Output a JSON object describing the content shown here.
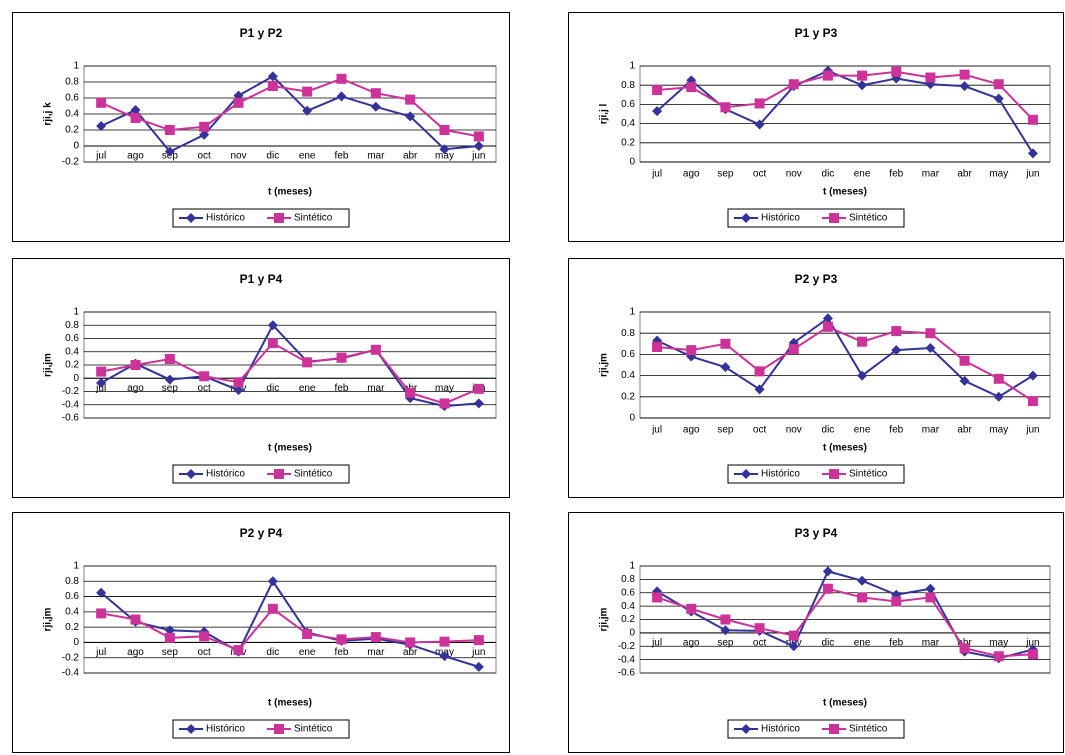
{
  "chart_data": [
    {
      "type": "line",
      "title": "P1 y P2",
      "x_label": "t (meses)",
      "y_label": "rji,j k",
      "categories": [
        "jul",
        "ago",
        "sep",
        "oct",
        "nov",
        "dic",
        "ene",
        "feb",
        "mar",
        "abr",
        "may",
        "jun"
      ],
      "ylim": [
        -0.2,
        1
      ],
      "yticks": [
        -0.2,
        0,
        0.2,
        0.4,
        0.6,
        0.8,
        1
      ],
      "grid": true,
      "legend": "bottom",
      "series": [
        {
          "name": "Histórico",
          "color": "#333399",
          "marker": "diamond",
          "values": [
            0.25,
            0.45,
            -0.07,
            0.14,
            0.63,
            0.87,
            0.44,
            0.62,
            0.49,
            0.37,
            -0.04,
            0.0
          ]
        },
        {
          "name": "Sintético",
          "color": "#cc3399",
          "marker": "square",
          "values": [
            0.54,
            0.35,
            0.2,
            0.24,
            0.54,
            0.75,
            0.68,
            0.84,
            0.66,
            0.58,
            0.2,
            0.12
          ]
        }
      ]
    },
    {
      "type": "line",
      "title": "P1 y P3",
      "x_label": "t (meses)",
      "y_label": "rji,j l",
      "categories": [
        "jul",
        "ago",
        "sep",
        "oct",
        "nov",
        "dic",
        "ene",
        "feb",
        "mar",
        "abr",
        "may",
        "jun"
      ],
      "ylim": [
        0,
        1
      ],
      "yticks": [
        0,
        0.2,
        0.4,
        0.6,
        0.8,
        1
      ],
      "grid": true,
      "legend": "bottom",
      "series": [
        {
          "name": "Histórico",
          "color": "#333399",
          "marker": "diamond",
          "values": [
            0.53,
            0.85,
            0.55,
            0.39,
            0.79,
            0.95,
            0.8,
            0.87,
            0.81,
            0.79,
            0.66,
            0.09
          ]
        },
        {
          "name": "Sintético",
          "color": "#cc3399",
          "marker": "square",
          "values": [
            0.75,
            0.78,
            0.57,
            0.61,
            0.81,
            0.9,
            0.9,
            0.94,
            0.88,
            0.91,
            0.81,
            0.44
          ]
        }
      ]
    },
    {
      "type": "line",
      "title": "P1 y P4",
      "x_label": "t (meses)",
      "y_label": "rji,jm",
      "categories": [
        "jul",
        "ago",
        "sep",
        "oct",
        "nov",
        "dic",
        "ene",
        "feb",
        "mar",
        "abr",
        "may",
        "jun"
      ],
      "ylim": [
        -0.6,
        1
      ],
      "yticks": [
        -0.6,
        -0.4,
        -0.2,
        0,
        0.2,
        0.4,
        0.6,
        0.8,
        1
      ],
      "grid": true,
      "legend": "bottom",
      "series": [
        {
          "name": "Histórico",
          "color": "#333399",
          "marker": "diamond",
          "values": [
            -0.07,
            0.22,
            -0.02,
            0.03,
            -0.18,
            0.8,
            0.25,
            0.3,
            0.43,
            -0.3,
            -0.42,
            -0.38
          ]
        },
        {
          "name": "Sintético",
          "color": "#cc3399",
          "marker": "square",
          "values": [
            0.1,
            0.2,
            0.29,
            0.03,
            -0.06,
            0.53,
            0.24,
            0.31,
            0.43,
            -0.22,
            -0.38,
            -0.16
          ]
        }
      ]
    },
    {
      "type": "line",
      "title": "P2 y P3",
      "x_label": "t (meses)",
      "y_label": "rji,jm",
      "categories": [
        "jul",
        "ago",
        "sep",
        "oct",
        "nov",
        "dic",
        "ene",
        "feb",
        "mar",
        "abr",
        "may",
        "jun"
      ],
      "ylim": [
        0,
        1
      ],
      "yticks": [
        0,
        0.2,
        0.4,
        0.6,
        0.8,
        1
      ],
      "grid": true,
      "legend": "bottom",
      "series": [
        {
          "name": "Histórico",
          "color": "#333399",
          "marker": "diamond",
          "values": [
            0.73,
            0.58,
            0.48,
            0.27,
            0.71,
            0.94,
            0.4,
            0.64,
            0.66,
            0.35,
            0.2,
            0.4
          ]
        },
        {
          "name": "Sintético",
          "color": "#cc3399",
          "marker": "square",
          "values": [
            0.67,
            0.64,
            0.7,
            0.44,
            0.65,
            0.86,
            0.72,
            0.82,
            0.8,
            0.54,
            0.37,
            0.16
          ]
        }
      ]
    },
    {
      "type": "line",
      "title": "P2 y P4",
      "x_label": "t (meses)",
      "y_label": "rji,jm",
      "categories": [
        "jul",
        "ago",
        "sep",
        "oct",
        "nov",
        "dic",
        "ene",
        "feb",
        "mar",
        "abr",
        "may",
        "jun"
      ],
      "ylim": [
        -0.4,
        1
      ],
      "yticks": [
        -0.4,
        -0.2,
        0,
        0.2,
        0.4,
        0.6,
        0.8,
        1
      ],
      "grid": true,
      "legend": "bottom",
      "series": [
        {
          "name": "Histórico",
          "color": "#333399",
          "marker": "diamond",
          "values": [
            0.65,
            0.27,
            0.16,
            0.14,
            -0.12,
            0.8,
            0.13,
            0.02,
            0.05,
            -0.03,
            -0.18,
            -0.32
          ]
        },
        {
          "name": "Sintético",
          "color": "#cc3399",
          "marker": "square",
          "values": [
            0.38,
            0.3,
            0.06,
            0.08,
            -0.1,
            0.44,
            0.11,
            0.04,
            0.07,
            0.0,
            0.01,
            0.03
          ]
        }
      ]
    },
    {
      "type": "line",
      "title": "P3 y P4",
      "x_label": "t (meses)",
      "y_label": "rji,jm",
      "categories": [
        "jul",
        "ago",
        "sep",
        "oct",
        "nov",
        "dic",
        "ene",
        "feb",
        "mar",
        "abr",
        "may",
        "jun"
      ],
      "ylim": [
        -0.6,
        1
      ],
      "yticks": [
        -0.6,
        -0.4,
        -0.2,
        0,
        0.2,
        0.4,
        0.6,
        0.8,
        1
      ],
      "grid": true,
      "legend": "bottom",
      "series": [
        {
          "name": "Histórico",
          "color": "#333399",
          "marker": "diamond",
          "values": [
            0.62,
            0.32,
            0.04,
            0.03,
            -0.2,
            0.92,
            0.78,
            0.57,
            0.66,
            -0.28,
            -0.38,
            -0.25
          ]
        },
        {
          "name": "Sintético",
          "color": "#cc3399",
          "marker": "square",
          "values": [
            0.53,
            0.36,
            0.2,
            0.07,
            -0.04,
            0.66,
            0.53,
            0.47,
            0.53,
            -0.23,
            -0.35,
            -0.32
          ]
        }
      ]
    }
  ]
}
